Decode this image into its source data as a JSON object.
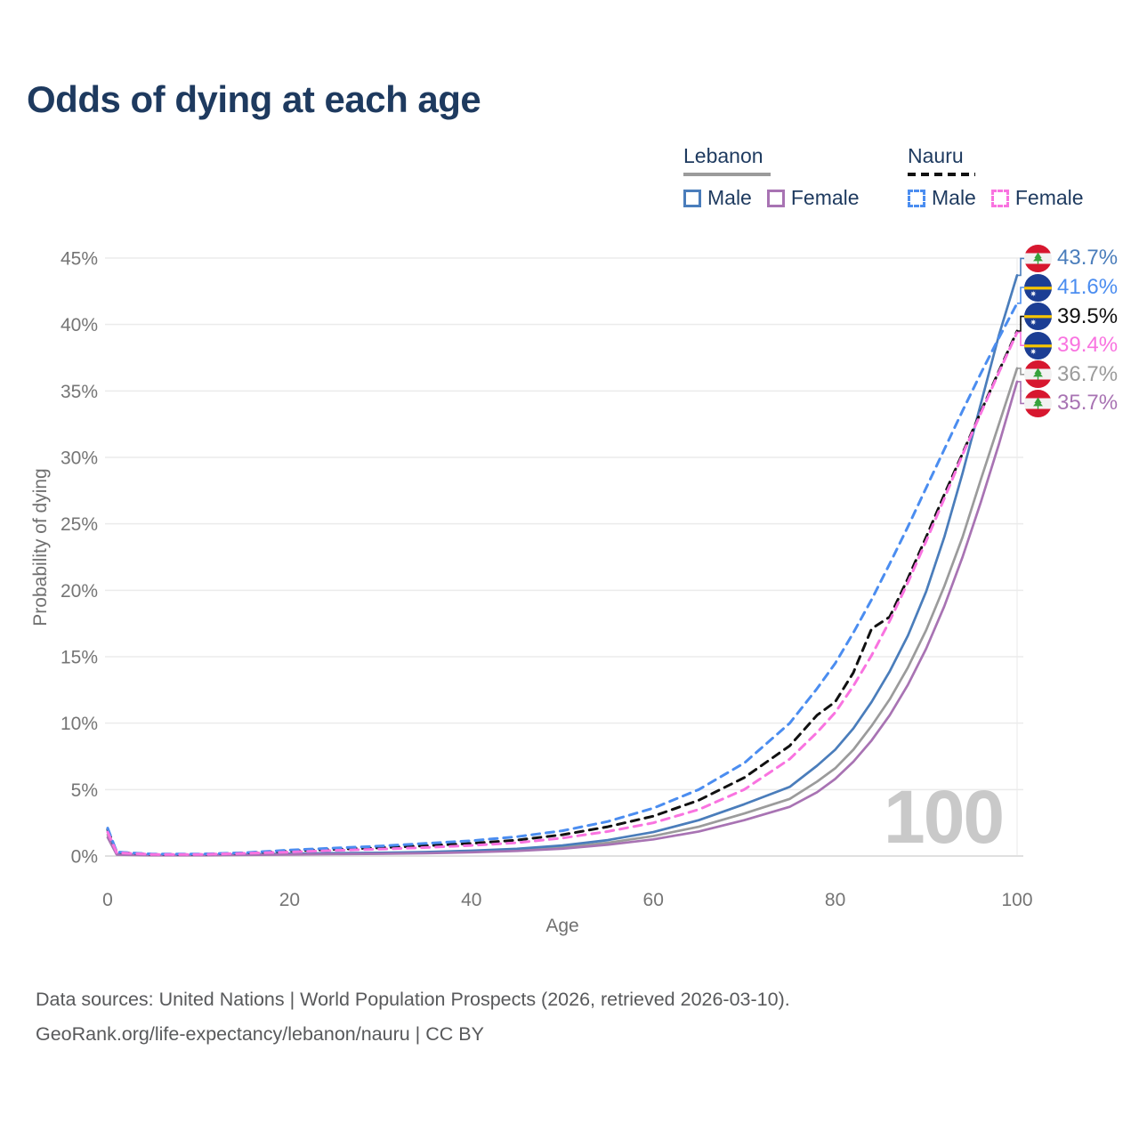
{
  "title": "Odds of dying at each age",
  "watermark": "100",
  "colors": {
    "title_text": "#1e3a5f",
    "axis_text": "#707070",
    "tick_text": "#757575",
    "gridline": "#ebebeb",
    "zero_line": "#e0e0e0",
    "watermark": "#c9c9c9",
    "footer_text": "#58595b",
    "lebanon_male": "#4a7dbb",
    "lebanon_female": "#a873b3",
    "lebanon_total": "#9b9b9b",
    "nauru_male": "#4b8df0",
    "nauru_female": "#f973e0",
    "nauru_total": "#111111"
  },
  "legend": {
    "groups": [
      {
        "country": "Lebanon",
        "line_style": "solid",
        "line_color": "#9b9b9b",
        "items": [
          {
            "label": "Male",
            "color": "#4a7dbb",
            "dash": "solid"
          },
          {
            "label": "Female",
            "color": "#a873b3",
            "dash": "solid"
          }
        ]
      },
      {
        "country": "Nauru",
        "line_style": "dashed",
        "line_color": "#111111",
        "items": [
          {
            "label": "Male",
            "color": "#4b8df0",
            "dash": "dashed"
          },
          {
            "label": "Female",
            "color": "#f973e0",
            "dash": "dashed"
          }
        ]
      }
    ]
  },
  "footer": {
    "line1": "Data sources: United Nations | World Population Prospects (2026, retrieved 2026-03-10).",
    "line2": "GeoRank.org/life-expectancy/lebanon/nauru | CC BY"
  },
  "chart_data": {
    "type": "line",
    "title": "Odds of dying at each age",
    "xlabel": "Age",
    "ylabel": "Probability of dying",
    "xlim": [
      0,
      100
    ],
    "ylim_percent": [
      0,
      45
    ],
    "x_ticks": [
      0,
      20,
      40,
      60,
      80,
      100
    ],
    "y_ticks_percent": [
      0,
      5,
      10,
      15,
      20,
      25,
      30,
      35,
      40,
      45
    ],
    "grid": "horizontal",
    "legend_position": "top-right",
    "annotation_age_marker": "100",
    "ages": [
      0,
      1,
      5,
      10,
      15,
      20,
      25,
      30,
      35,
      40,
      45,
      50,
      55,
      60,
      65,
      70,
      75,
      78,
      80,
      82,
      84,
      86,
      88,
      90,
      92,
      94,
      96,
      98,
      100
    ],
    "series": [
      {
        "name": "Lebanon",
        "country": "Lebanon",
        "sex": "both",
        "color": "#9b9b9b",
        "dash": "solid",
        "flag": "lebanon",
        "end_label": "36.7%",
        "values_percent": [
          1.6,
          0.12,
          0.07,
          0.07,
          0.1,
          0.15,
          0.18,
          0.21,
          0.25,
          0.33,
          0.45,
          0.65,
          1.0,
          1.5,
          2.2,
          3.2,
          4.3,
          5.6,
          6.6,
          8.0,
          9.8,
          11.8,
          14.2,
          17.0,
          20.3,
          24.0,
          28.3,
          32.5,
          36.7
        ]
      },
      {
        "name": "Lebanon Male",
        "country": "Lebanon",
        "sex": "male",
        "color": "#4a7dbb",
        "dash": "solid",
        "flag": "lebanon",
        "end_label": "43.7%",
        "values_percent": [
          1.9,
          0.15,
          0.08,
          0.08,
          0.12,
          0.18,
          0.22,
          0.25,
          0.3,
          0.4,
          0.55,
          0.8,
          1.2,
          1.8,
          2.7,
          3.9,
          5.2,
          6.8,
          8.0,
          9.6,
          11.6,
          13.9,
          16.6,
          19.9,
          24.0,
          28.8,
          34.0,
          39.2,
          43.7
        ]
      },
      {
        "name": "Lebanon Female",
        "country": "Lebanon",
        "sex": "female",
        "color": "#a873b3",
        "dash": "solid",
        "flag": "lebanon",
        "end_label": "35.7%",
        "values_percent": [
          1.4,
          0.1,
          0.06,
          0.06,
          0.08,
          0.11,
          0.14,
          0.17,
          0.21,
          0.28,
          0.38,
          0.55,
          0.85,
          1.25,
          1.85,
          2.7,
          3.7,
          4.8,
          5.8,
          7.1,
          8.7,
          10.6,
          12.9,
          15.6,
          18.8,
          22.5,
          26.6,
          31.0,
          35.7
        ]
      },
      {
        "name": "Nauru",
        "country": "Nauru",
        "sex": "both",
        "color": "#111111",
        "dash": "dashed",
        "flag": "nauru",
        "end_label": "39.5%",
        "values_percent": [
          2.0,
          0.28,
          0.13,
          0.13,
          0.22,
          0.38,
          0.5,
          0.62,
          0.78,
          0.95,
          1.2,
          1.6,
          2.2,
          3.0,
          4.2,
          5.9,
          8.3,
          10.6,
          11.6,
          13.8,
          17.1,
          18.0,
          20.9,
          24.0,
          27.2,
          30.3,
          33.4,
          36.5,
          39.5
        ]
      },
      {
        "name": "Nauru Male",
        "country": "Nauru",
        "sex": "male",
        "color": "#4b8df0",
        "dash": "dashed",
        "flag": "nauru",
        "end_label": "41.6%",
        "values_percent": [
          2.1,
          0.3,
          0.15,
          0.15,
          0.25,
          0.45,
          0.6,
          0.75,
          0.95,
          1.15,
          1.45,
          1.9,
          2.6,
          3.6,
          5.0,
          7.0,
          10.0,
          12.6,
          14.5,
          16.8,
          19.3,
          22.0,
          24.8,
          27.7,
          30.6,
          33.5,
          36.3,
          39.0,
          41.6
        ]
      },
      {
        "name": "Nauru Female",
        "country": "Nauru",
        "sex": "female",
        "color": "#f973e0",
        "dash": "dashed",
        "flag": "nauru",
        "end_label": "39.4%",
        "values_percent": [
          1.8,
          0.25,
          0.12,
          0.12,
          0.2,
          0.3,
          0.42,
          0.52,
          0.64,
          0.8,
          1.0,
          1.35,
          1.85,
          2.5,
          3.5,
          5.0,
          7.3,
          9.3,
          10.8,
          12.8,
          15.1,
          17.7,
          20.6,
          23.7,
          26.9,
          30.2,
          33.3,
          36.4,
          39.4
        ]
      }
    ]
  }
}
